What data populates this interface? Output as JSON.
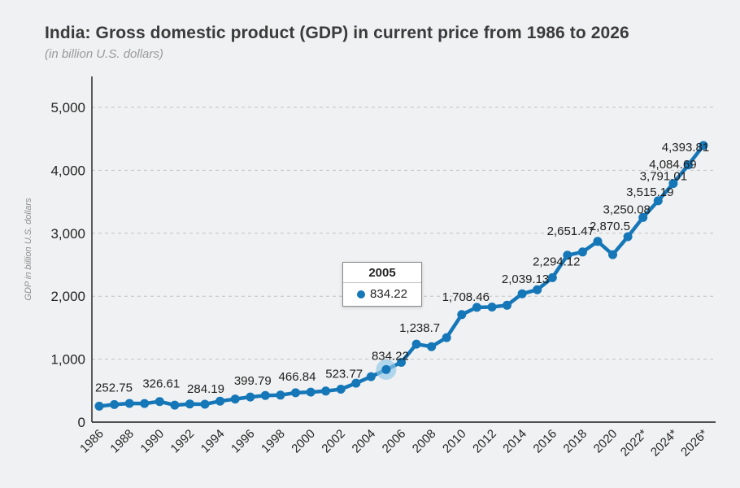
{
  "page": {
    "title": "India: Gross domestic product (GDP) in current price from 1986 to 2026",
    "subtitle": "(in billion U.S. dollars)"
  },
  "tooltip": {
    "title": "2005",
    "value": "834.22"
  },
  "colors": {
    "line": "#1577b8",
    "halo": "#8ec8e8",
    "background": "#f0f1f2",
    "grid": "#c2c2c2",
    "axis": "#1a1a1a",
    "title_text": "#3b3b3b",
    "subtitle_text": "#9a9a9a",
    "tick_text": "#252525",
    "point_label_text": "#1f1f1f",
    "axis_title_text": "#8f8f8f"
  },
  "chart_data": {
    "type": "line",
    "title": "India: Gross domestic product (GDP) in current price from 1986 to 2026",
    "subtitle": "(in billion U.S. dollars)",
    "xlabel": "",
    "ylabel": "GDP in billion U.S. dollars",
    "ylim": [
      0,
      5000
    ],
    "yticks": [
      0,
      1000,
      2000,
      3000,
      4000,
      5000
    ],
    "ytick_labels": [
      "0",
      "1,000",
      "2,000",
      "3,000",
      "4,000",
      "5,000"
    ],
    "grid": "horizontal-dashed",
    "legend": "none",
    "years": [
      1986,
      1987,
      1988,
      1989,
      1990,
      1991,
      1992,
      1993,
      1994,
      1995,
      1996,
      1997,
      1998,
      1999,
      2000,
      2001,
      2002,
      2003,
      2004,
      2005,
      2006,
      2007,
      2008,
      2009,
      2010,
      2011,
      2012,
      2013,
      2014,
      2015,
      2016,
      2017,
      2018,
      2019,
      2020,
      2021,
      2022,
      2023,
      2024,
      2025,
      2026
    ],
    "xticks": [
      1986,
      1988,
      1990,
      1992,
      1994,
      1996,
      1998,
      2000,
      2002,
      2004,
      2006,
      2008,
      2010,
      2012,
      2014,
      2016,
      2018,
      2020,
      2022,
      2024,
      2026
    ],
    "xtick_labels": [
      "1986",
      "1988",
      "1990",
      "1992",
      "1994",
      "1996",
      "1998",
      "2000",
      "2002",
      "2004",
      "2006",
      "2008",
      "2010",
      "2012",
      "2014",
      "2016",
      "2018",
      "2020",
      "2022*",
      "2024*",
      "2026*"
    ],
    "series": [
      {
        "name": "GDP in billion U.S. dollars",
        "values": [
          252.75,
          279.03,
          296.59,
          296.04,
          326.61,
          270.11,
          288.21,
          284.19,
          333.01,
          366.6,
          399.79,
          423.19,
          428.77,
          466.84,
          476.64,
          493.95,
          523.77,
          618.37,
          721.59,
          834.22,
          949.12,
          1238.7,
          1198.9,
          1341.89,
          1708.46,
          1823.05,
          1827.64,
          1856.72,
          2039.13,
          2103.59,
          2294.12,
          2651.47,
          2702.93,
          2870.5,
          2660.24,
          2946.06,
          3250.08,
          3515.19,
          3791.01,
          4084.69,
          4393.81
        ]
      }
    ],
    "point_labels": [
      {
        "year": 1986,
        "text": "252.75"
      },
      {
        "year": 1990,
        "text": "326.61"
      },
      {
        "year": 1993,
        "text": "284.19"
      },
      {
        "year": 1996,
        "text": "399.79"
      },
      {
        "year": 1999,
        "text": "466.84"
      },
      {
        "year": 2002,
        "text": "523.77"
      },
      {
        "year": 2005,
        "text": "834.22"
      },
      {
        "year": 2007,
        "text": "1,238.7"
      },
      {
        "year": 2010,
        "text": "1,708.46"
      },
      {
        "year": 2014,
        "text": "2,039.13"
      },
      {
        "year": 2016,
        "text": "2,294.12"
      },
      {
        "year": 2017,
        "text": "2,651.47"
      },
      {
        "year": 2019,
        "text": "2,870.5"
      },
      {
        "year": 2022,
        "text": "3,250.08"
      },
      {
        "year": 2023,
        "text": "3,515.19"
      },
      {
        "year": 2024,
        "text": "3,791.01"
      },
      {
        "year": 2025,
        "text": "4,084.69"
      },
      {
        "year": 2026,
        "text": "4,393.81"
      }
    ],
    "highlight": {
      "year": 2005,
      "value": 834.22
    }
  }
}
